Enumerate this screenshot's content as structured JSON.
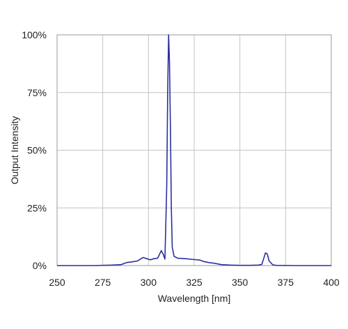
{
  "chart_data": {
    "type": "line",
    "title": "",
    "xlabel": "Wavelength [nm]",
    "ylabel": "Output Intensity",
    "xlim": [
      250,
      400
    ],
    "ylim": [
      0,
      100
    ],
    "xticks": [
      250,
      275,
      300,
      325,
      350,
      375,
      400
    ],
    "yticks": [
      0,
      25,
      50,
      75,
      100
    ],
    "xtick_labels": [
      "250",
      "275",
      "300",
      "325",
      "350",
      "375",
      "400"
    ],
    "ytick_labels": [
      "0%",
      "25%",
      "50%",
      "75%",
      "100%"
    ],
    "grid": true,
    "legend": "none",
    "series": [
      {
        "color": "#2b2f9e",
        "x": [
          250,
          260,
          270,
          280,
          285,
          288,
          291,
          294,
          296,
          297,
          299,
          301,
          303,
          305,
          306,
          307,
          308,
          309,
          310,
          310.5,
          311,
          311.5,
          312,
          312.5,
          313,
          314,
          316,
          320,
          325,
          328,
          330,
          333,
          336,
          340,
          345,
          350,
          355,
          360,
          362,
          363,
          364,
          365,
          366,
          368,
          370,
          380,
          390,
          400
        ],
        "y": [
          0,
          0,
          0,
          0.2,
          0.4,
          1.3,
          1.6,
          2.0,
          3.0,
          3.5,
          3.0,
          2.5,
          3.0,
          3.2,
          4.8,
          6.5,
          5.0,
          2.8,
          35,
          75,
          100,
          88,
          60,
          25,
          8,
          4.0,
          3.2,
          3.0,
          2.6,
          2.4,
          1.8,
          1.3,
          1.0,
          0.4,
          0.2,
          0.1,
          0.1,
          0.2,
          0.5,
          3.0,
          5.5,
          5.0,
          2.0,
          0.3,
          0.1,
          0,
          0,
          0
        ]
      }
    ]
  }
}
